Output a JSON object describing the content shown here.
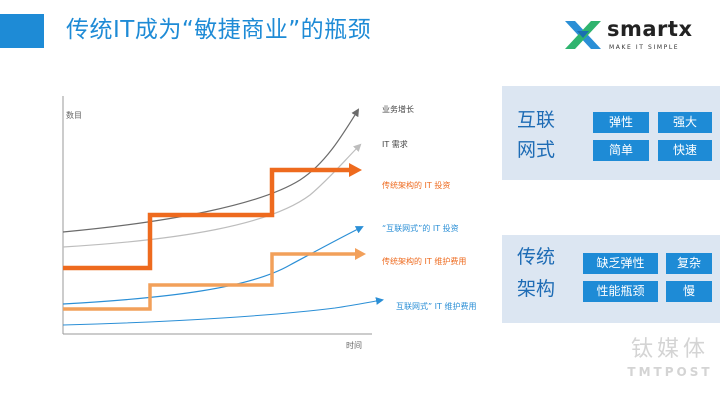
{
  "title": "传统IT成为“敏捷商业”的瓶颈",
  "logo": {
    "name": "smartx",
    "tagline": "MAKE IT SIMPLE"
  },
  "chart": {
    "y_axis_label": "数目",
    "x_axis_label": "时间",
    "series_labels": {
      "business_growth": "业务增长",
      "it_demand": "IT 需求",
      "traditional_investment": "传统架构的 IT 投资",
      "internet_investment": "“互联网式”的 IT 投资",
      "traditional_maintenance": "传统架构的 IT 维护费用",
      "internet_maintenance": "互联网式” IT 维护费用"
    },
    "colors": {
      "business_growth": "#6b6b6b",
      "it_demand": "#bdbdbd",
      "traditional_investment": "#ee6a1e",
      "internet_investment": "#2b8fd6",
      "traditional_maintenance": "#f2a05a",
      "internet_maintenance": "#2b8fd6"
    }
  },
  "panels": {
    "internet": {
      "title_line1": "互联",
      "title_line2": "网式",
      "tags": [
        "弹性",
        "强大",
        "简单",
        "快速"
      ]
    },
    "traditional": {
      "title_line1": "传统",
      "title_line2": "架构",
      "tags": [
        "缺乏弹性",
        "复杂",
        "性能瓶颈",
        "慢"
      ]
    }
  },
  "watermark": {
    "cn": "钛媒体",
    "en": "TMTPOST"
  }
}
